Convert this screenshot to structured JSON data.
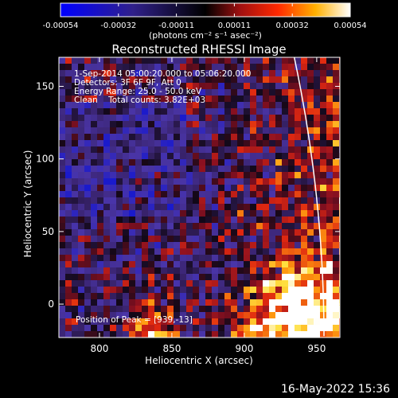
{
  "chart_data": {
    "type": "heatmap",
    "title": "Reconstructed RHESSI Image",
    "xlabel": "Heliocentric X (arcsec)",
    "ylabel": "Heliocentric Y (arcsec)",
    "xlim": [
      772,
      966
    ],
    "ylim": [
      -23,
      170
    ],
    "x_ticks": [
      "800",
      "850",
      "900",
      "950"
    ],
    "x_tick_values": [
      800,
      850,
      900,
      950
    ],
    "y_ticks": [
      "0",
      "50",
      "100",
      "150"
    ],
    "y_tick_values": [
      0,
      50,
      100,
      150
    ],
    "colorbar": {
      "ticks": [
        "-0.00054",
        "-0.00032",
        "-0.00011",
        "0.00011",
        "0.00032",
        "0.00054"
      ],
      "range": [
        -0.00054,
        0.00054
      ],
      "title": "(photons cm⁻² s⁻¹ asec⁻²)",
      "colormap": "blue-black-red-yellow-white"
    },
    "annotations": {
      "time_range": "1-Sep-2014 05:00:20.000 to 05:06:20.000",
      "detectors": "Detectors: 3F 6F 9F, Att 0",
      "energy_range": "Energy Range: 25.0 - 50.0 keV",
      "method_counts": "Clean    Total counts: 3.82E+03",
      "peak_position": "Position of Peak = [939,-13]"
    },
    "features": {
      "limb_curve": "white solar limb line near x ≈ 940–955 arcsec",
      "bright_source": "bright yellow/white emission centred near x ≈ 939, y ≈ -13 arcsec"
    }
  },
  "footer": {
    "timestamp": "16-May-2022 15:36"
  },
  "colors": {
    "background": "#000000",
    "text": "#ffffff",
    "accent": "#ffd800"
  }
}
